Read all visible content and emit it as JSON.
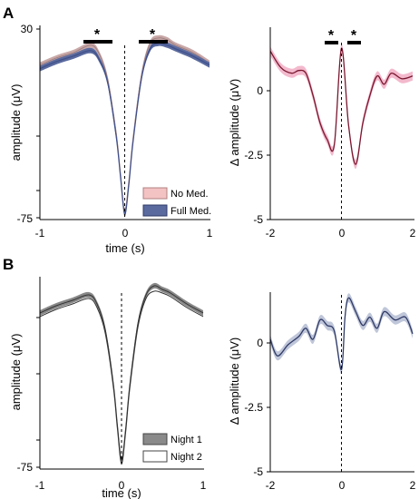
{
  "panels": {
    "A": {
      "letter": "A",
      "left": {
        "xlabel": "time (s)",
        "ylabel": "amplitude (μV)",
        "xticks": [
          "-1",
          "0",
          "1"
        ],
        "yticks": [
          "30",
          "-75"
        ],
        "legend": [
          "No Med.",
          "Full Med."
        ],
        "markers": [
          "*",
          "*"
        ]
      },
      "right": {
        "ylabel": "Δ amplitude (μV)",
        "xticks": [
          "-2",
          "0",
          "2"
        ],
        "yticks": [
          "0",
          "-2.5",
          "-5"
        ],
        "markers": [
          "*",
          "*"
        ]
      }
    },
    "B": {
      "letter": "B",
      "left": {
        "xlabel": "time (s)",
        "ylabel": "amplitude (μV)",
        "xticks": [
          "-1",
          "0",
          "1"
        ],
        "yticks": [
          "-75"
        ],
        "legend": [
          "Night 1",
          "Night 2"
        ]
      },
      "right": {
        "ylabel": "Δ amplitude (μV)",
        "xticks": [
          "-2",
          "0",
          "2"
        ],
        "yticks": [
          "0",
          "-2.5",
          "-5"
        ]
      }
    }
  },
  "colors": {
    "no_med": "#c9a8a8",
    "full_med": "#3f4f8a",
    "diff_A": "#7a1830",
    "diff_A_band": "#f0a8c0",
    "night1": "#888888",
    "night2": "#555555",
    "diff_B": "#2f3a66",
    "diff_B_band": "#b4bcd2"
  },
  "chart_data": [
    {
      "panel": "A-left",
      "type": "line",
      "xlabel": "time (s)",
      "ylabel": "amplitude (μV)",
      "xlim": [
        -1,
        1
      ],
      "ylim": [
        -75,
        30
      ],
      "x": [
        -1.0,
        -0.8,
        -0.6,
        -0.4,
        -0.3,
        -0.2,
        -0.1,
        -0.05,
        0.0,
        0.05,
        0.1,
        0.2,
        0.3,
        0.4,
        0.5,
        0.6,
        0.8,
        1.0
      ],
      "series": [
        {
          "name": "No Med.",
          "values": [
            10,
            14,
            17,
            21,
            16,
            2,
            -28,
            -50,
            -71,
            -54,
            -30,
            5,
            22,
            25,
            24,
            21,
            17,
            11
          ]
        },
        {
          "name": "Full Med.",
          "values": [
            8,
            12,
            15,
            18,
            13,
            0,
            -30,
            -52,
            -73,
            -56,
            -32,
            3,
            19,
            22,
            21,
            19,
            15,
            10
          ]
        }
      ],
      "significance": [
        [
          -0.45,
          -0.15
        ],
        [
          0.18,
          0.5
        ]
      ]
    },
    {
      "panel": "A-right",
      "type": "line",
      "ylabel": "Δ amplitude (μV)",
      "xlim": [
        -2,
        2
      ],
      "ylim": [
        -5,
        2
      ],
      "x": [
        -2.0,
        -1.7,
        -1.4,
        -1.2,
        -1.0,
        -0.8,
        -0.6,
        -0.4,
        -0.2,
        0.0,
        0.2,
        0.4,
        0.6,
        0.8,
        1.0,
        1.2,
        1.4,
        1.7,
        2.0
      ],
      "series": [
        {
          "name": "difference",
          "values": [
            1.1,
            0.5,
            0.3,
            0.4,
            0.3,
            -0.5,
            -1.5,
            -2.1,
            -2.3,
            1.2,
            -1.6,
            -3.0,
            -1.5,
            -0.5,
            0.2,
            -0.1,
            0.3,
            0.1,
            0.2
          ]
        }
      ],
      "significance": [
        [
          -0.45,
          -0.15
        ],
        [
          0.2,
          0.5
        ]
      ]
    },
    {
      "panel": "B-left",
      "type": "line",
      "xlabel": "time (s)",
      "ylabel": "amplitude (μV)",
      "xlim": [
        -1,
        1
      ],
      "ylim": [
        -75,
        30
      ],
      "x": [
        -1.0,
        -0.8,
        -0.6,
        -0.4,
        -0.3,
        -0.2,
        -0.1,
        -0.05,
        0.0,
        0.05,
        0.1,
        0.2,
        0.3,
        0.4,
        0.5,
        0.6,
        0.8,
        1.0
      ],
      "series": [
        {
          "name": "Night 1",
          "values": [
            10,
            14,
            17,
            20,
            15,
            1,
            -29,
            -52,
            -71,
            -54,
            -30,
            4,
            20,
            25,
            23,
            21,
            15,
            10
          ]
        },
        {
          "name": "Night 2",
          "values": [
            8,
            12,
            15,
            18,
            13,
            -1,
            -31,
            -54,
            -73,
            -56,
            -32,
            2,
            18,
            22,
            21,
            19,
            13,
            8
          ]
        }
      ]
    },
    {
      "panel": "B-right",
      "type": "line",
      "ylabel": "Δ amplitude (μV)",
      "xlim": [
        -2,
        2
      ],
      "ylim": [
        -5,
        2
      ],
      "x": [
        -2.0,
        -1.8,
        -1.5,
        -1.2,
        -1.0,
        -0.8,
        -0.6,
        -0.4,
        -0.2,
        0.0,
        0.1,
        0.2,
        0.4,
        0.6,
        0.8,
        1.0,
        1.2,
        1.5,
        1.8,
        2.0
      ],
      "series": [
        {
          "name": "difference",
          "values": [
            -0.2,
            -0.8,
            -0.4,
            -0.1,
            0.2,
            -0.2,
            0.5,
            0.3,
            0.1,
            -1.3,
            0.6,
            1.3,
            0.8,
            0.3,
            0.6,
            0.2,
            0.8,
            0.5,
            0.6,
            0.0
          ]
        }
      ]
    }
  ]
}
